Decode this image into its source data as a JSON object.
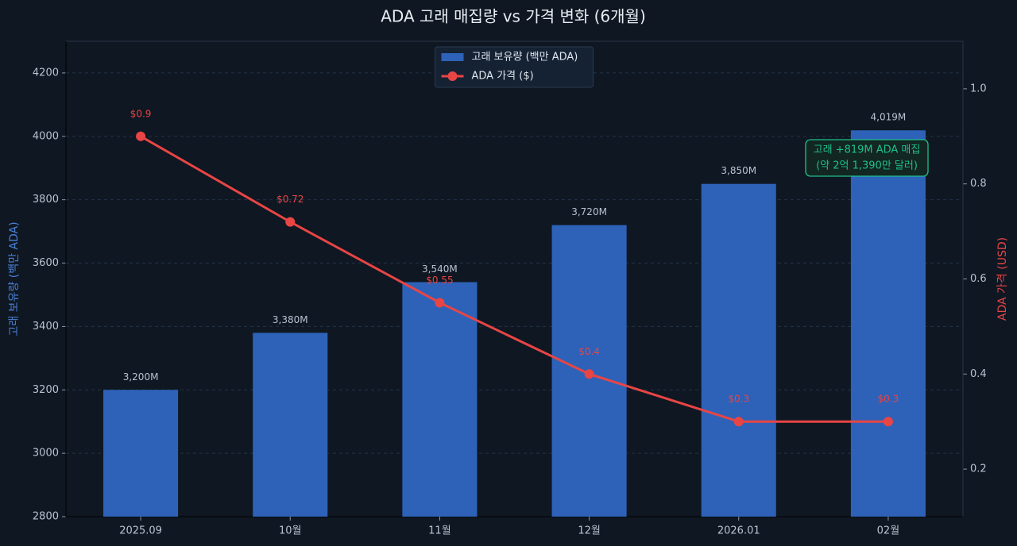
{
  "chart_data": {
    "type": "bar",
    "title": "ADA 고래 매집량 vs 가격 변화 (6개월)",
    "categories": [
      "2025.09",
      "10월",
      "11월",
      "12월",
      "2026.01",
      "02월"
    ],
    "series": [
      {
        "name": "고래 보유량 (백만 ADA)",
        "type": "bar",
        "color": "#2d62b8",
        "values": [
          3200,
          3380,
          3540,
          3720,
          3850,
          4019
        ],
        "value_labels": [
          "3,200M",
          "3,380M",
          "3,540M",
          "3,720M",
          "3,850M",
          "4,019M"
        ]
      },
      {
        "name": "ADA 가격 ($)",
        "type": "line",
        "axis": "y2",
        "color": "#e84545",
        "values": [
          0.9,
          0.72,
          0.55,
          0.4,
          0.3,
          0.3
        ],
        "value_labels": [
          "$0.9",
          "$0.72",
          "$0.55",
          "$0.4",
          "$0.3",
          "$0.3"
        ]
      }
    ],
    "ylabel": "고래 보유량 (백만 ADA)",
    "y2label": "ADA 가격 (USD)",
    "ylim": [
      2800,
      4300
    ],
    "yticks": [
      2800,
      3000,
      3200,
      3400,
      3600,
      3800,
      4000,
      4200
    ],
    "y2lim": [
      0.1,
      1.1
    ],
    "y2ticks": [
      0.2,
      0.4,
      0.6,
      0.8,
      {
        "value": 1,
        "label": "1.0"
      }
    ],
    "grid": true,
    "legend": "upper center",
    "annotation": {
      "lines": [
        "고래 +819M ADA 매집",
        "(약 2억 1,390만 달러)"
      ],
      "color": "#1fc08a"
    }
  }
}
